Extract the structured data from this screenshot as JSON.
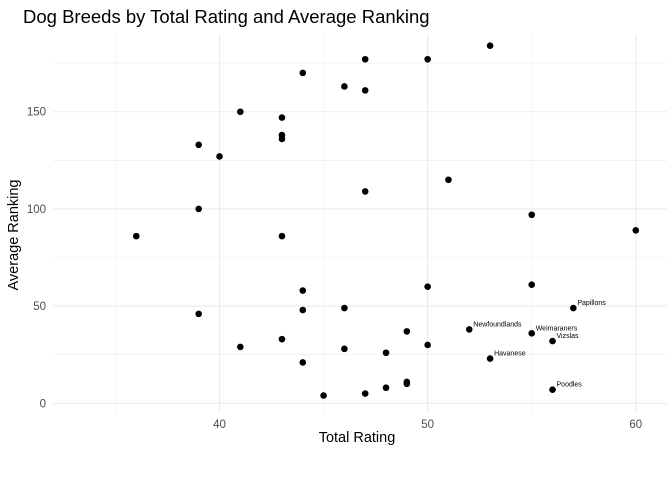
{
  "chart_data": {
    "type": "scatter",
    "title": "Dog Breeds by Total Rating and Average Ranking",
    "xlabel": "Total Rating",
    "ylabel": "Average Ranking",
    "xlim": [
      32,
      61.5
    ],
    "ylim": [
      -5,
      190
    ],
    "x_ticks": [
      40,
      50,
      60
    ],
    "y_ticks": [
      0,
      50,
      100,
      150
    ],
    "grid": true,
    "point_color": "#000000",
    "grid_color": "#ebebeb",
    "points": [
      {
        "x": 36,
        "y": 86
      },
      {
        "x": 39,
        "y": 133
      },
      {
        "x": 39,
        "y": 100
      },
      {
        "x": 39,
        "y": 46
      },
      {
        "x": 40,
        "y": 127
      },
      {
        "x": 41,
        "y": 150
      },
      {
        "x": 41,
        "y": 29
      },
      {
        "x": 43,
        "y": 147
      },
      {
        "x": 43,
        "y": 138
      },
      {
        "x": 43,
        "y": 136
      },
      {
        "x": 43,
        "y": 86
      },
      {
        "x": 43,
        "y": 33
      },
      {
        "x": 44,
        "y": 170
      },
      {
        "x": 44,
        "y": 58
      },
      {
        "x": 44,
        "y": 48
      },
      {
        "x": 44,
        "y": 21
      },
      {
        "x": 45,
        "y": 4
      },
      {
        "x": 46,
        "y": 163
      },
      {
        "x": 46,
        "y": 49
      },
      {
        "x": 46,
        "y": 28
      },
      {
        "x": 47,
        "y": 177
      },
      {
        "x": 47,
        "y": 161
      },
      {
        "x": 47,
        "y": 109
      },
      {
        "x": 47,
        "y": 5
      },
      {
        "x": 48,
        "y": 26
      },
      {
        "x": 48,
        "y": 8
      },
      {
        "x": 49,
        "y": 37
      },
      {
        "x": 49,
        "y": 11
      },
      {
        "x": 49,
        "y": 10
      },
      {
        "x": 50,
        "y": 177
      },
      {
        "x": 50,
        "y": 60
      },
      {
        "x": 50,
        "y": 30
      },
      {
        "x": 51,
        "y": 115
      },
      {
        "x": 52,
        "y": 38,
        "label": "Newfoundlands"
      },
      {
        "x": 53,
        "y": 184
      },
      {
        "x": 53,
        "y": 23,
        "label": "Havanese"
      },
      {
        "x": 55,
        "y": 97
      },
      {
        "x": 55,
        "y": 61
      },
      {
        "x": 55,
        "y": 36,
        "label": "Weimaraners"
      },
      {
        "x": 56,
        "y": 32,
        "label": "Vizslas"
      },
      {
        "x": 56,
        "y": 7,
        "label": "Poodles"
      },
      {
        "x": 57,
        "y": 49,
        "label": "Papillons"
      },
      {
        "x": 60,
        "y": 89
      }
    ]
  }
}
